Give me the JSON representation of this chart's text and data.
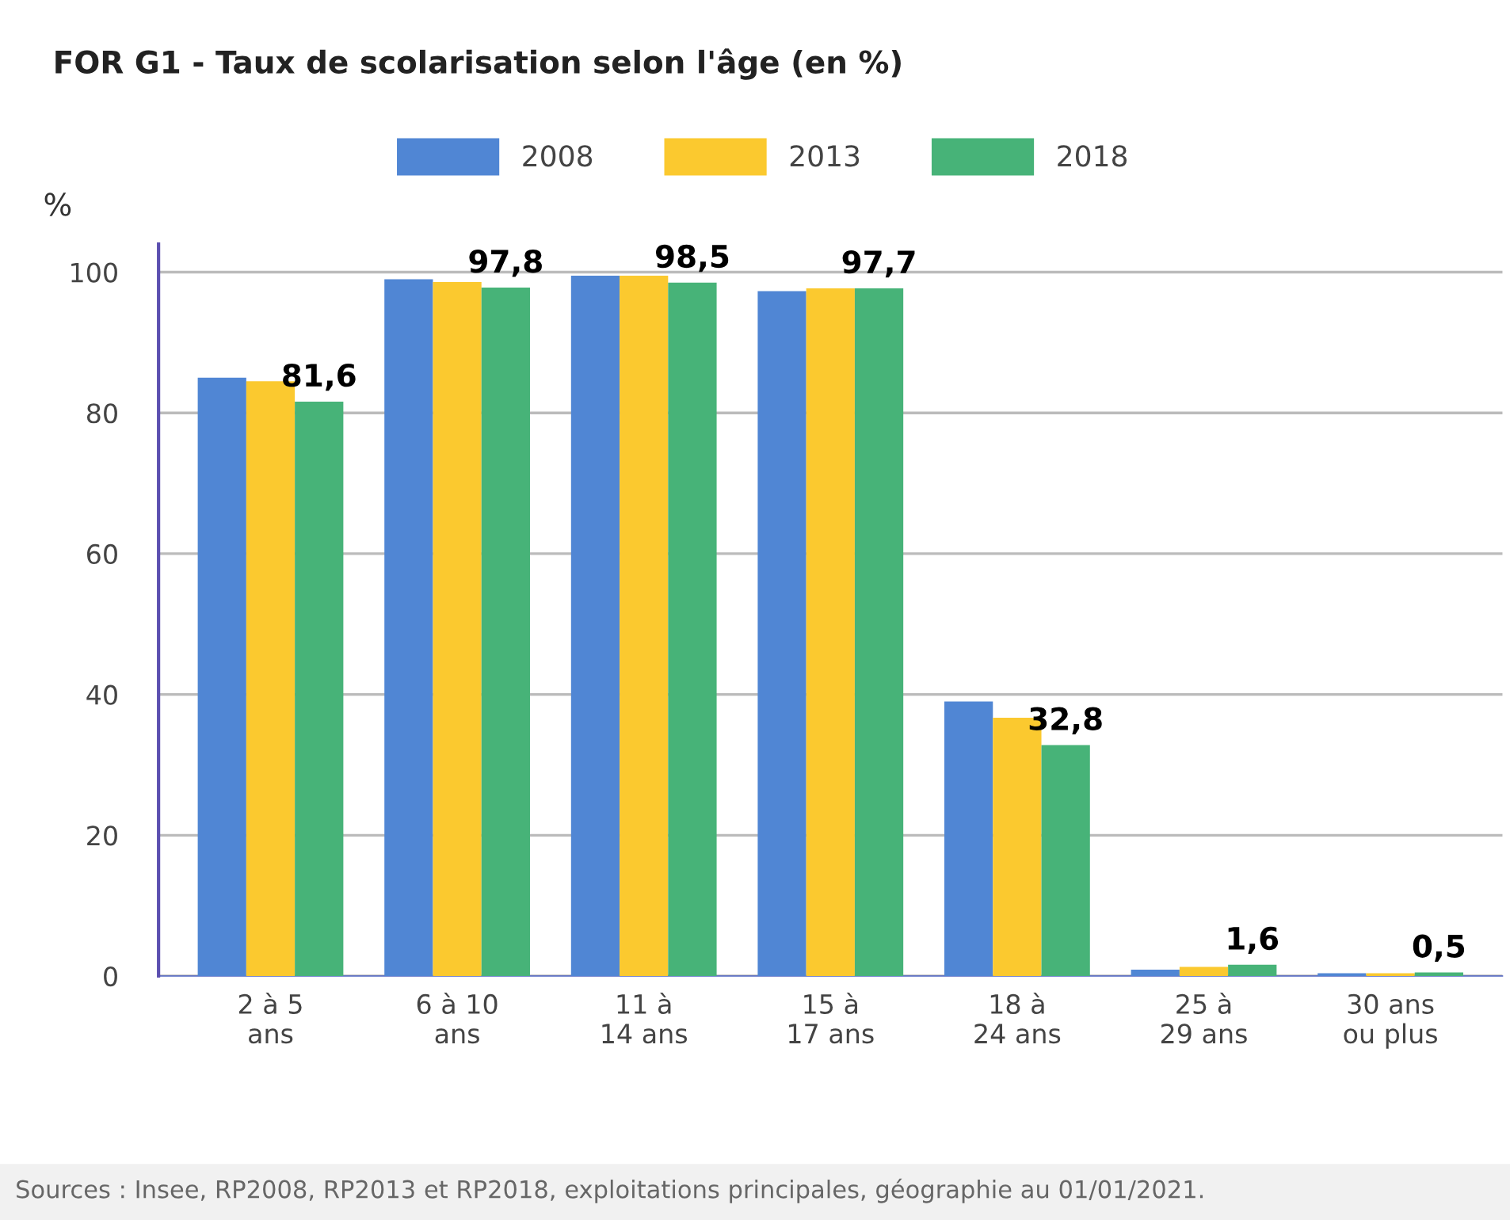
{
  "chart_data": {
    "type": "bar",
    "title": "FOR G1 - Taux de scolarisation selon l'âge (en %)",
    "ylabel": "%",
    "categories": [
      "2 à 5\nans",
      "6 à 10\nans",
      "11 à\n14 ans",
      "15 à\n17 ans",
      "18 à\n24 ans",
      "25 à\n29 ans",
      "30 ans\nou plus"
    ],
    "series": [
      {
        "name": "2008",
        "color": "#5086d4",
        "values": [
          85,
          99,
          99.5,
          97.3,
          39,
          0.9,
          0.4
        ]
      },
      {
        "name": "2013",
        "color": "#fbc92f",
        "values": [
          84.5,
          98.6,
          99.5,
          97.7,
          36.7,
          1.3,
          0.4
        ]
      },
      {
        "name": "2018",
        "color": "#47b378",
        "values": [
          81.6,
          97.8,
          98.5,
          97.7,
          32.8,
          1.6,
          0.5
        ],
        "value_labels": [
          "81,6",
          "97,8",
          "98,5",
          "97,7",
          "32,8",
          "1,6",
          "0,5"
        ]
      }
    ],
    "ylim": [
      0,
      104
    ],
    "yticks": [
      0,
      20,
      40,
      60,
      80,
      100
    ],
    "grid": "y",
    "legend": "top",
    "annotations": [
      "Sources : Insee, RP2008, RP2013 et RP2018, exploitations principales, géographie au 01/01/2021."
    ]
  }
}
